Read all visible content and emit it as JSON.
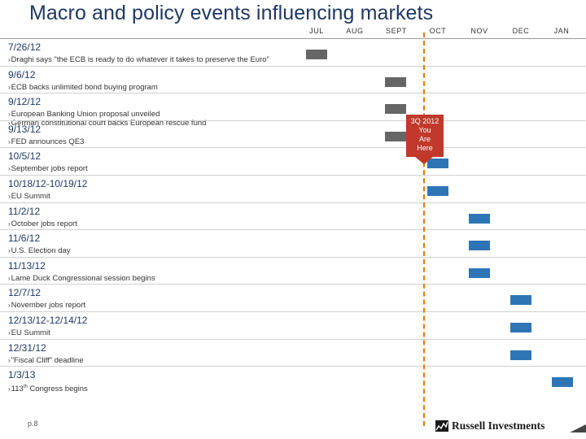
{
  "title": "Macro and policy events influencing markets",
  "months": [
    "JUL",
    "AUG",
    "SEPT",
    "OCT",
    "NOV",
    "DEC",
    "JAN"
  ],
  "callout": {
    "lines": [
      "3Q 2012",
      "You",
      "Are",
      "Here"
    ]
  },
  "events": [
    {
      "date": "7/26/12",
      "items": [
        "Draghi says \"the ECB is ready to do whatever it takes to preserve the Euro\""
      ],
      "status": "past",
      "month": "JUL"
    },
    {
      "date": "9/6/12",
      "items": [
        "ECB backs unlimited bond buying program"
      ],
      "status": "past",
      "month": "SEPT"
    },
    {
      "date": "9/12/12",
      "items": [
        "European Banking Union proposal unveiled",
        "German constitutional court backs European rescue fund"
      ],
      "status": "past",
      "month": "SEPT"
    },
    {
      "date": "9/13/12",
      "items": [
        "FED announces QE3"
      ],
      "status": "past",
      "month": "SEPT"
    },
    {
      "date": "10/5/12",
      "items": [
        "September jobs report"
      ],
      "status": "future",
      "month": "OCT"
    },
    {
      "date": "10/18/12-10/19/12",
      "items": [
        "EU Summit"
      ],
      "status": "future",
      "month": "OCT"
    },
    {
      "date": "11/2/12",
      "items": [
        "October jobs report"
      ],
      "status": "future",
      "month": "NOV"
    },
    {
      "date": "11/6/12",
      "items": [
        "U.S. Election day"
      ],
      "status": "future",
      "month": "NOV"
    },
    {
      "date": "11/13/12",
      "items": [
        "Lame Duck Congressional session begins"
      ],
      "status": "future",
      "month": "NOV"
    },
    {
      "date": "12/7/12",
      "items": [
        "November jobs report"
      ],
      "status": "future",
      "month": "DEC"
    },
    {
      "date": "12/13/12-12/14/12",
      "items": [
        "EU Summit"
      ],
      "status": "future",
      "month": "DEC"
    },
    {
      "date": "12/31/12",
      "items": [
        "\"Fiscal Cliff\" deadline"
      ],
      "status": "future",
      "month": "DEC"
    },
    {
      "date": "1/3/13",
      "items": [
        "113",
        "Congress begins"
      ],
      "superscript": "th",
      "status": "future",
      "month": "JAN"
    }
  ],
  "page_number": "p.8",
  "brand": "Russell Investments",
  "colors": {
    "title": "#1f3864",
    "past_bar": "#666666",
    "future_bar": "#2e75b6",
    "today_line": "#e07b00",
    "callout": "#c0392b"
  }
}
